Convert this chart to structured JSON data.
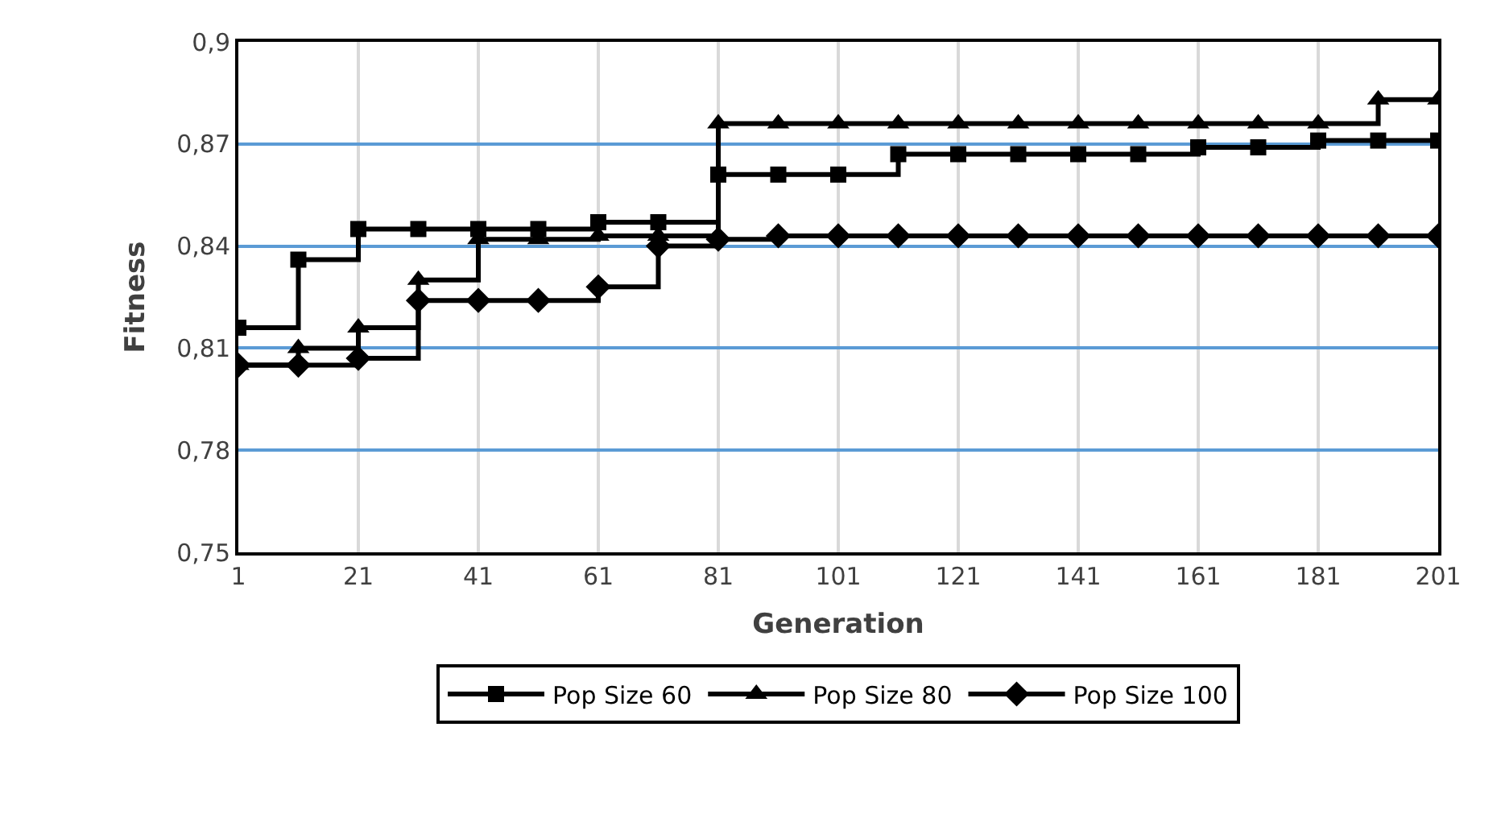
{
  "chart_data": {
    "type": "step",
    "xlabel": "Generation",
    "ylabel": "Fitness",
    "x": [
      1,
      11,
      21,
      31,
      41,
      51,
      61,
      71,
      81,
      91,
      101,
      111,
      121,
      131,
      141,
      151,
      161,
      171,
      181,
      191,
      201
    ],
    "series": [
      {
        "name": "Pop Size 60",
        "color": "#000000",
        "marker": "square",
        "values": [
          0.816,
          0.836,
          0.845,
          0.845,
          0.845,
          0.845,
          0.847,
          0.847,
          0.861,
          0.861,
          0.861,
          0.867,
          0.867,
          0.867,
          0.867,
          0.867,
          0.869,
          0.869,
          0.871,
          0.871,
          0.871
        ]
      },
      {
        "name": "Pop Size 80",
        "color": "#000000",
        "marker": "triangle",
        "values": [
          0.805,
          0.81,
          0.816,
          0.83,
          0.842,
          0.842,
          0.843,
          0.843,
          0.876,
          0.876,
          0.876,
          0.876,
          0.876,
          0.876,
          0.876,
          0.876,
          0.876,
          0.876,
          0.876,
          0.883,
          0.883
        ]
      },
      {
        "name": "Pop Size 100",
        "color": "#000000",
        "marker": "diamond",
        "values": [
          0.805,
          0.805,
          0.807,
          0.824,
          0.824,
          0.824,
          0.828,
          0.84,
          0.842,
          0.843,
          0.843,
          0.843,
          0.843,
          0.843,
          0.843,
          0.843,
          0.843,
          0.843,
          0.843,
          0.843,
          0.843
        ]
      }
    ],
    "xlim": [
      1,
      201
    ],
    "xticks": [
      1,
      21,
      41,
      61,
      81,
      101,
      121,
      141,
      161,
      181,
      201
    ],
    "ylim": [
      0.75,
      0.9
    ],
    "yticks": [
      {
        "value": 0.75,
        "label": "0,75"
      },
      {
        "value": 0.78,
        "label": "0,78"
      },
      {
        "value": 0.81,
        "label": "0,81"
      },
      {
        "value": 0.84,
        "label": "0,84"
      },
      {
        "value": 0.87,
        "label": "0,87"
      },
      {
        "value": 0.9,
        "label": "0,9"
      }
    ],
    "grid": true,
    "legend": "bottom",
    "line_style": "solid"
  }
}
